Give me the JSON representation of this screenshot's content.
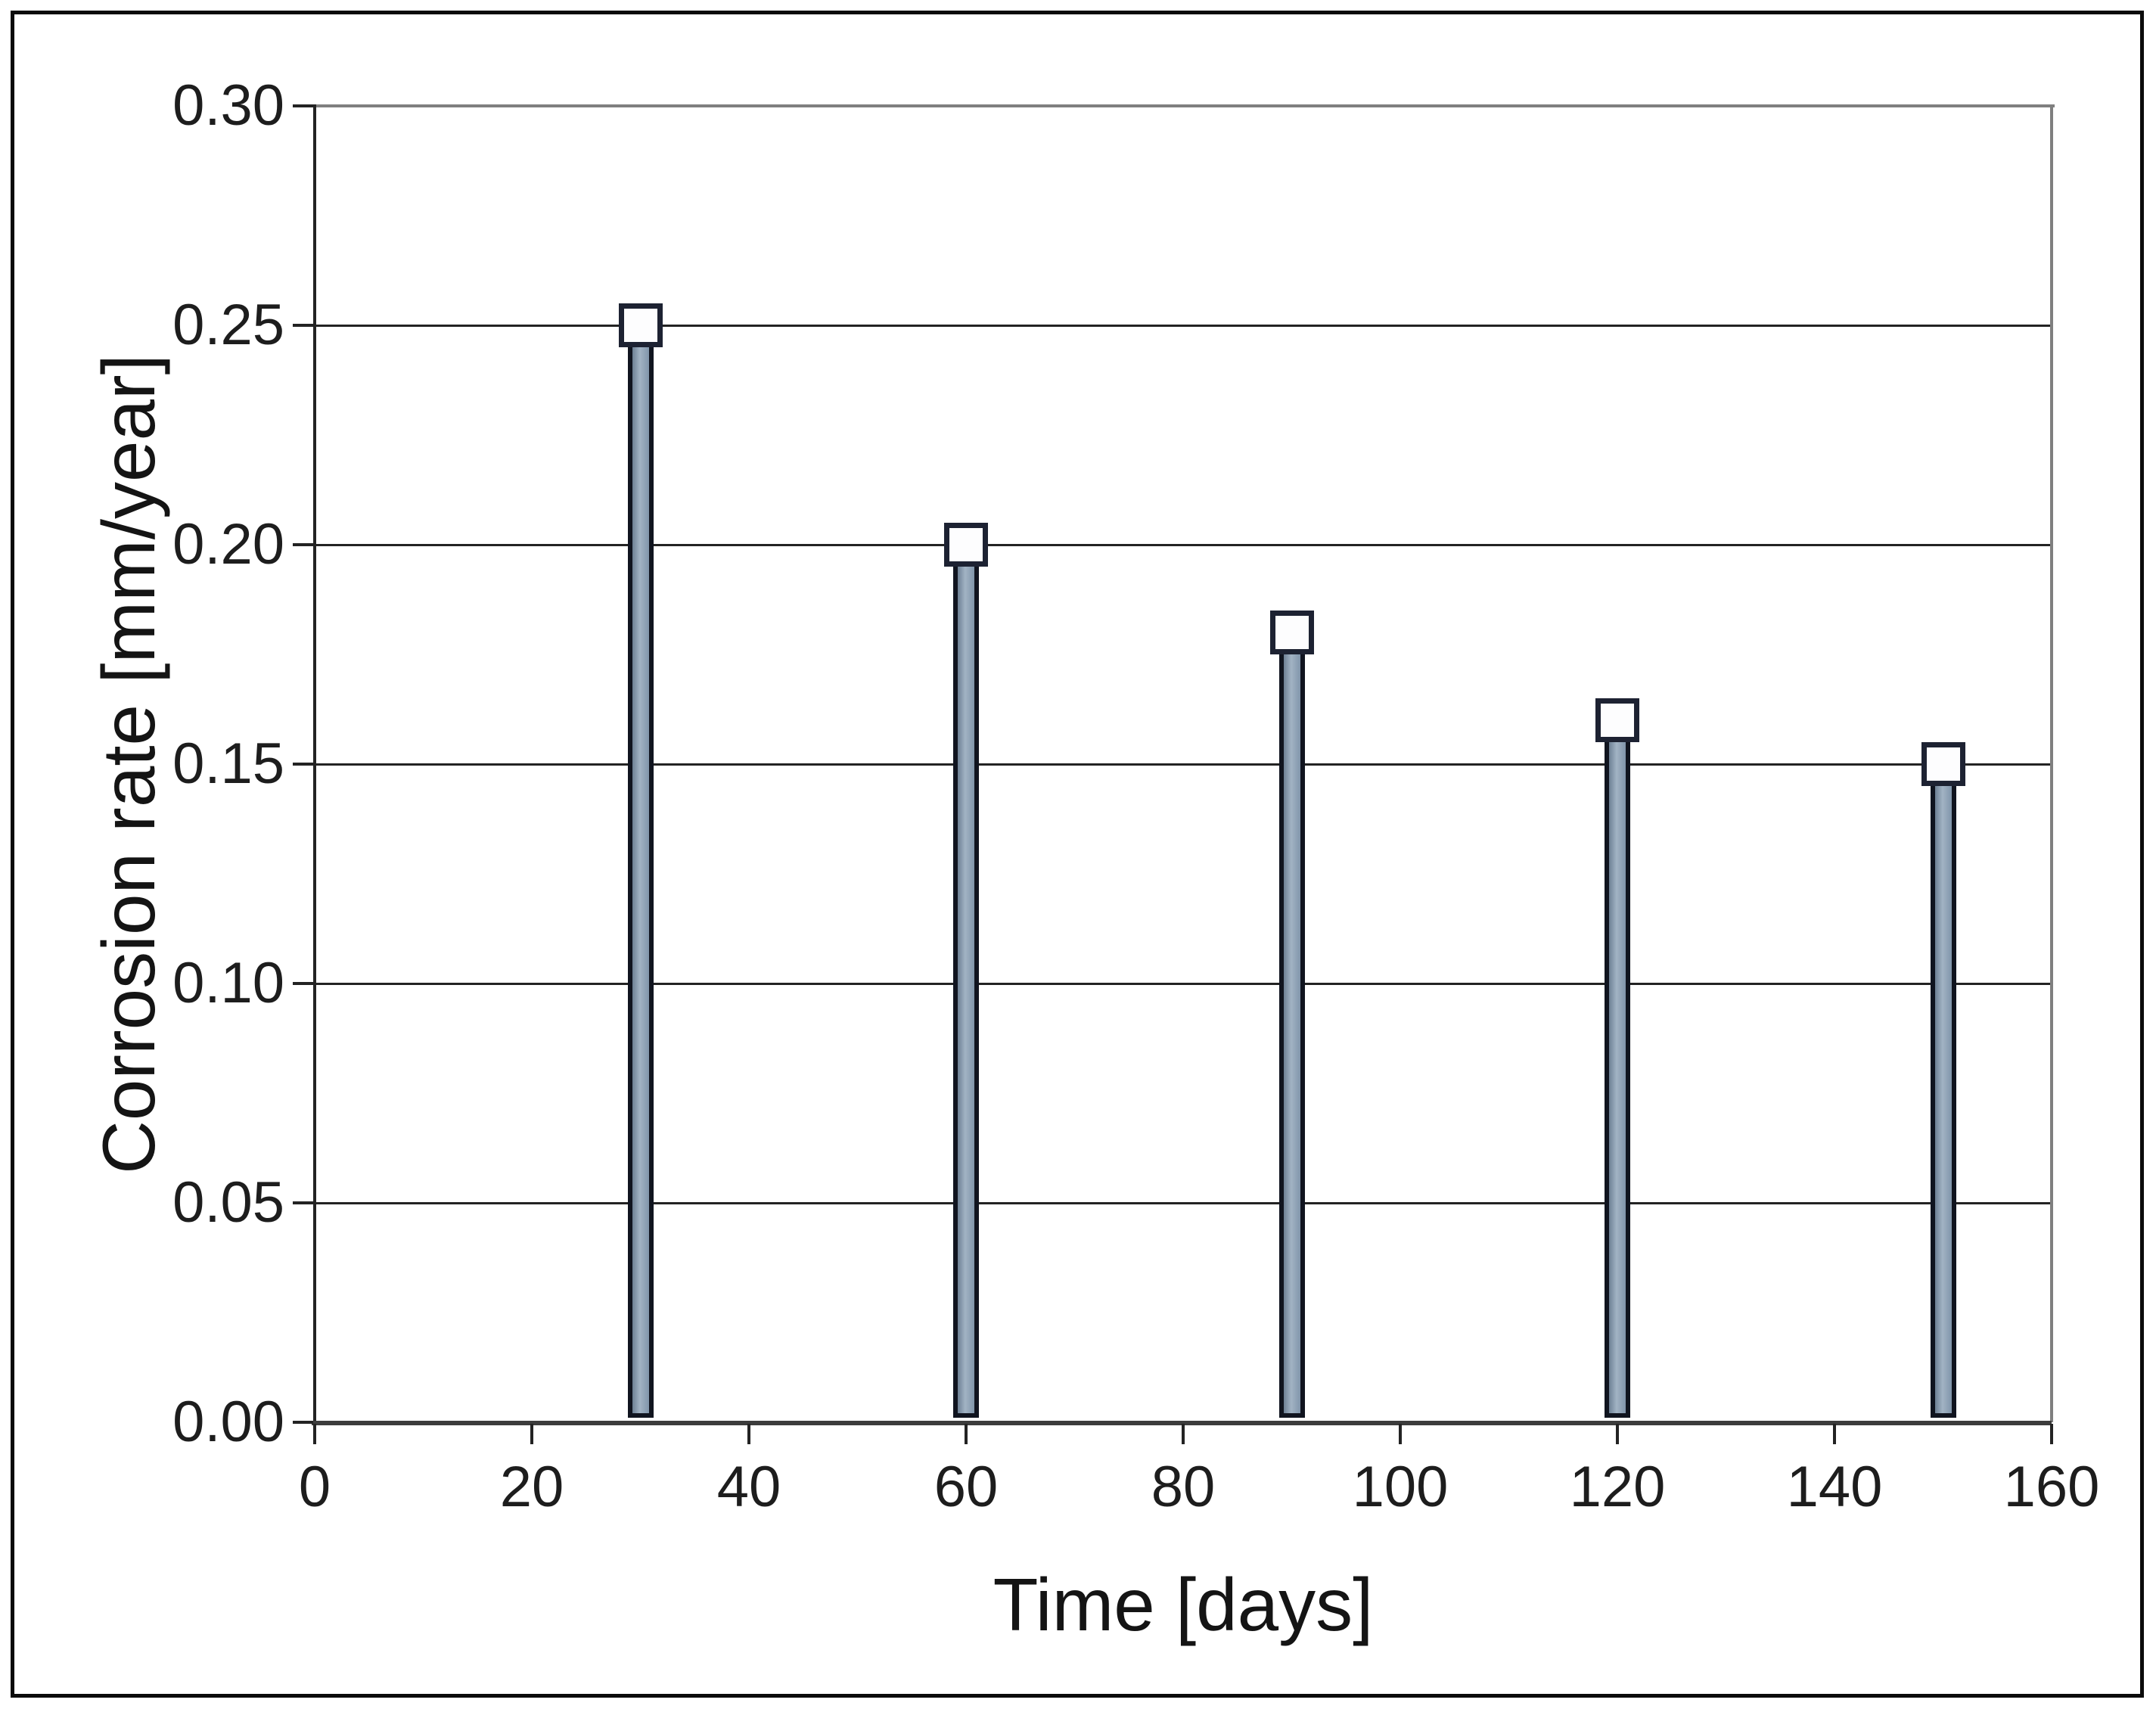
{
  "figure": {
    "background_color": "#ffffff",
    "outer_border_color": "#0b0b0b"
  },
  "chart_data": {
    "type": "bar",
    "title": "",
    "xlabel": "Time [days]",
    "ylabel": "Corrosion rate [mm/year]",
    "x": [
      30,
      60,
      90,
      120,
      150
    ],
    "values": [
      0.25,
      0.2,
      0.18,
      0.16,
      0.15
    ],
    "series_name": "Corrosion rate",
    "xlim": [
      0,
      160
    ],
    "ylim": [
      0.0,
      0.3
    ],
    "x_tick_values": [
      0,
      20,
      40,
      60,
      80,
      100,
      120,
      140,
      160
    ],
    "x_tick_labels": [
      "0",
      "20",
      "40",
      "60",
      "80",
      "100",
      "120",
      "140",
      "160"
    ],
    "y_tick_values": [
      0.0,
      0.05,
      0.1,
      0.15,
      0.2,
      0.25,
      0.3
    ],
    "y_tick_labels": [
      "0.00",
      "0.05",
      "0.10",
      "0.15",
      "0.20",
      "0.25",
      "0.30"
    ],
    "grid": true,
    "legend": "none",
    "marker_shape": "open-square",
    "colors": {
      "bar_fill": "#8ba0b4",
      "bar_border": "#10141f",
      "marker_fill": "#fdfdfe",
      "marker_border": "#1d2232",
      "gridline": "#232323",
      "axis_line": "#3c3c3c",
      "plot_border": "#7f7f7f",
      "text": "#1d1d1d"
    }
  }
}
